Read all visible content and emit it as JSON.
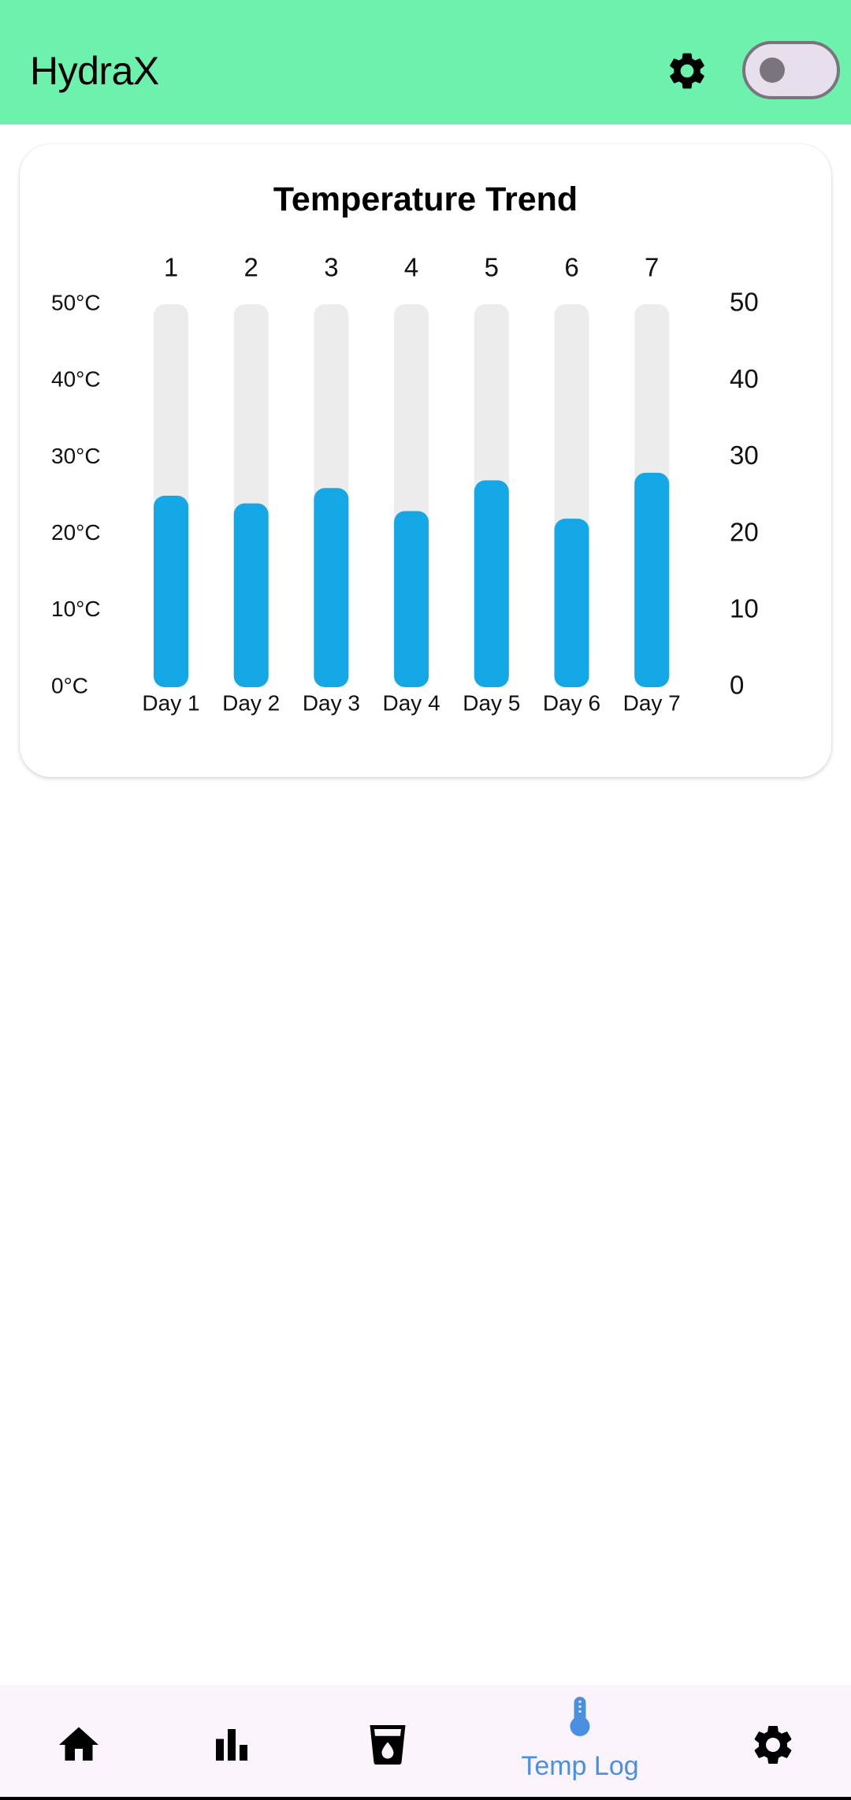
{
  "app": {
    "title": "HydraX"
  },
  "header": {
    "settings_icon": "gear-icon",
    "toggle_icon": "toggle-switch"
  },
  "card": {
    "title": "Temperature Trend"
  },
  "chart_data": {
    "type": "bar",
    "title": "Temperature Trend",
    "categories": [
      "Day 1",
      "Day 2",
      "Day 3",
      "Day 4",
      "Day 5",
      "Day 6",
      "Day 7"
    ],
    "top_labels": [
      "1",
      "2",
      "3",
      "4",
      "5",
      "6",
      "7"
    ],
    "values": [
      25,
      24,
      26,
      23,
      27,
      22,
      28
    ],
    "ylim": [
      0,
      50
    ],
    "left_ticks": [
      "0°C",
      "10°C",
      "20°C",
      "30°C",
      "40°C",
      "50°C"
    ],
    "right_ticks": [
      "0",
      "10",
      "20",
      "30",
      "40",
      "50"
    ],
    "bar_color": "#14a7e6",
    "track_color": "#ececec",
    "grid": false,
    "legend": "none"
  },
  "nav": {
    "items": [
      {
        "name": "home",
        "icon": "home-icon",
        "label": ""
      },
      {
        "name": "stats",
        "icon": "bar-chart-icon",
        "label": ""
      },
      {
        "name": "water",
        "icon": "water-cup-icon",
        "label": ""
      },
      {
        "name": "temp-log",
        "icon": "thermometer-icon",
        "label": "Temp Log",
        "active": true
      },
      {
        "name": "settings",
        "icon": "gear-icon",
        "label": ""
      }
    ],
    "active_color": "#4a90e2"
  }
}
